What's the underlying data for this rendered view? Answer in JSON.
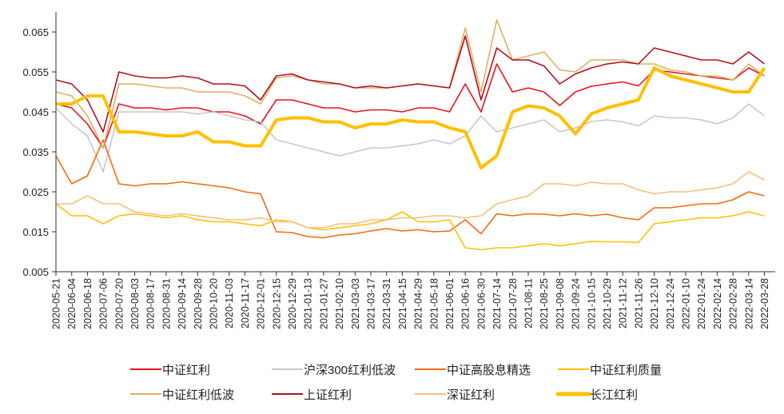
{
  "chart_data": {
    "type": "line",
    "title": "",
    "xlabel": "",
    "ylabel": "",
    "ylim": [
      0.005,
      0.07
    ],
    "yticks": [
      "0.005",
      "0.015",
      "0.025",
      "0.035",
      "0.045",
      "0.055",
      "0.065"
    ],
    "grid": false,
    "legend_placement": "bottom",
    "x": [
      "2020-05-21",
      "2020-06-04",
      "2020-06-18",
      "2020-07-06",
      "2020-07-20",
      "2020-08-03",
      "2020-08-17",
      "2020-08-31",
      "2020-09-14",
      "2020-09-28",
      "2020-10-20",
      "2020-11-03",
      "2020-11-17",
      "2020-12-01",
      "2020-12-15",
      "2020-12-29",
      "2021-01-13",
      "2021-01-27",
      "2021-02-10",
      "2021-03-03",
      "2021-03-17",
      "2021-03-31",
      "2021-04-15",
      "2021-04-29",
      "2021-05-18",
      "2021-06-01",
      "2021-06-16",
      "2021-06-30",
      "2021-07-14",
      "2021-07-28",
      "2021-08-11",
      "2021-08-25",
      "2021-09-08",
      "2021-09-24",
      "2021-10-15",
      "2021-10-29",
      "2021-11-12",
      "2021-11-26",
      "2021-12-10",
      "2021-12-24",
      "2022-01-10",
      "2022-01-24",
      "2022-02-14",
      "2022-02-28",
      "2022-03-14",
      "2022-03-28"
    ],
    "series": [
      {
        "name": "中证红利",
        "color": "#E8141B",
        "width": 1.6,
        "values": [
          0.047,
          0.046,
          0.042,
          0.036,
          0.047,
          0.046,
          0.046,
          0.0455,
          0.046,
          0.046,
          0.045,
          0.045,
          0.044,
          0.042,
          0.048,
          0.048,
          0.047,
          0.046,
          0.046,
          0.045,
          0.0455,
          0.0455,
          0.045,
          0.046,
          0.046,
          0.045,
          0.052,
          0.045,
          0.057,
          0.05,
          0.051,
          0.05,
          0.0466,
          0.05,
          0.0514,
          0.052,
          0.0525,
          0.0515,
          0.0555,
          0.055,
          0.0545,
          0.054,
          0.0535,
          0.053,
          0.056,
          0.054
        ]
      },
      {
        "name": "沪深300红利低波",
        "color": "#C8C8C8",
        "width": 1.6,
        "values": [
          0.046,
          0.042,
          0.039,
          0.03,
          0.045,
          0.045,
          0.045,
          0.045,
          0.045,
          0.0445,
          0.045,
          0.044,
          0.043,
          0.0425,
          0.038,
          0.037,
          0.036,
          0.035,
          0.034,
          0.035,
          0.036,
          0.036,
          0.0365,
          0.037,
          0.038,
          0.037,
          0.039,
          0.044,
          0.04,
          0.041,
          0.042,
          0.043,
          0.04,
          0.041,
          0.0426,
          0.043,
          0.0425,
          0.0415,
          0.044,
          0.0435,
          0.0435,
          0.043,
          0.042,
          0.0435,
          0.047,
          0.044
        ]
      },
      {
        "name": "中证高股息精选",
        "color": "#F46A10",
        "width": 1.6,
        "values": [
          0.034,
          0.027,
          0.029,
          0.038,
          0.027,
          0.0265,
          0.027,
          0.027,
          0.0275,
          0.027,
          0.0265,
          0.026,
          0.025,
          0.0245,
          0.015,
          0.0148,
          0.0138,
          0.0135,
          0.0142,
          0.0145,
          0.0152,
          0.0158,
          0.0152,
          0.0155,
          0.015,
          0.0152,
          0.018,
          0.0145,
          0.0195,
          0.019,
          0.0195,
          0.0194,
          0.019,
          0.0195,
          0.019,
          0.0194,
          0.0185,
          0.018,
          0.021,
          0.021,
          0.0215,
          0.022,
          0.022,
          0.023,
          0.025,
          0.024
        ]
      },
      {
        "name": "中证红利质量",
        "color": "#FFC000",
        "width": 1.6,
        "values": [
          0.022,
          0.019,
          0.019,
          0.017,
          0.019,
          0.0195,
          0.019,
          0.0185,
          0.019,
          0.018,
          0.0175,
          0.0175,
          0.017,
          0.0165,
          0.018,
          0.0175,
          0.016,
          0.0155,
          0.016,
          0.0165,
          0.017,
          0.018,
          0.02,
          0.0175,
          0.0175,
          0.018,
          0.011,
          0.0105,
          0.011,
          0.011,
          0.0115,
          0.012,
          0.0115,
          0.012,
          0.0126,
          0.0125,
          0.0125,
          0.0123,
          0.017,
          0.0175,
          0.018,
          0.0185,
          0.0185,
          0.019,
          0.02,
          0.019
        ]
      },
      {
        "name": "中证红利低波",
        "color": "#DDB060",
        "width": 1.6,
        "values": [
          0.05,
          0.049,
          0.044,
          0.036,
          0.052,
          0.052,
          0.0515,
          0.051,
          0.051,
          0.05,
          0.05,
          0.05,
          0.049,
          0.047,
          0.0535,
          0.054,
          0.053,
          0.052,
          0.052,
          0.051,
          0.051,
          0.051,
          0.0515,
          0.052,
          0.0515,
          0.051,
          0.066,
          0.05,
          0.068,
          0.058,
          0.059,
          0.06,
          0.0555,
          0.055,
          0.058,
          0.058,
          0.058,
          0.057,
          0.057,
          0.0555,
          0.055,
          0.054,
          0.054,
          0.053,
          0.057,
          0.054
        ]
      },
      {
        "name": "上证红利",
        "color": "#B0101E",
        "width": 1.6,
        "values": [
          0.053,
          0.052,
          0.048,
          0.04,
          0.055,
          0.054,
          0.0535,
          0.0535,
          0.054,
          0.0535,
          0.052,
          0.052,
          0.0515,
          0.048,
          0.054,
          0.0545,
          0.053,
          0.0525,
          0.052,
          0.051,
          0.0515,
          0.051,
          0.0515,
          0.052,
          0.0515,
          0.051,
          0.064,
          0.048,
          0.061,
          0.058,
          0.058,
          0.0565,
          0.052,
          0.0545,
          0.056,
          0.057,
          0.0575,
          0.057,
          0.061,
          0.06,
          0.059,
          0.058,
          0.058,
          0.057,
          0.06,
          0.057
        ]
      },
      {
        "name": "深证红利",
        "color": "#F9BE7C",
        "width": 1.6,
        "values": [
          0.022,
          0.022,
          0.024,
          0.022,
          0.022,
          0.02,
          0.0195,
          0.019,
          0.0195,
          0.019,
          0.0185,
          0.018,
          0.018,
          0.0185,
          0.0175,
          0.0175,
          0.016,
          0.016,
          0.017,
          0.017,
          0.018,
          0.018,
          0.0185,
          0.0185,
          0.019,
          0.019,
          0.0185,
          0.019,
          0.022,
          0.023,
          0.024,
          0.027,
          0.027,
          0.0265,
          0.0274,
          0.027,
          0.027,
          0.0255,
          0.0245,
          0.025,
          0.025,
          0.0255,
          0.026,
          0.027,
          0.03,
          0.028
        ]
      },
      {
        "name": "长江红利",
        "color": "#FFC000",
        "width": 4,
        "values": [
          0.047,
          0.047,
          0.049,
          0.049,
          0.04,
          0.04,
          0.0395,
          0.039,
          0.039,
          0.04,
          0.0375,
          0.0375,
          0.0365,
          0.0365,
          0.043,
          0.0435,
          0.0435,
          0.0425,
          0.0425,
          0.041,
          0.042,
          0.042,
          0.043,
          0.0425,
          0.0425,
          0.041,
          0.04,
          0.031,
          0.034,
          0.045,
          0.0465,
          0.046,
          0.044,
          0.0395,
          0.0445,
          0.046,
          0.047,
          0.048,
          0.056,
          0.054,
          0.053,
          0.052,
          0.051,
          0.05,
          0.05,
          0.056
        ]
      }
    ]
  }
}
